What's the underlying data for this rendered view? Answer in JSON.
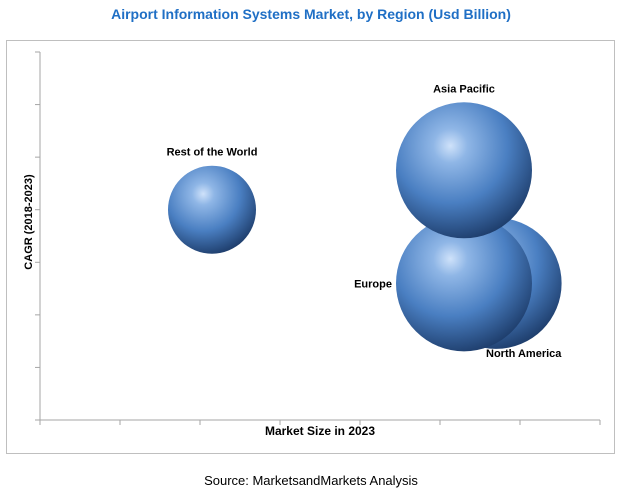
{
  "chart_data": {
    "type": "bubble",
    "title": "Airport Information Systems Market, by Region (Usd Billion)",
    "xlabel": "Market Size in 2023",
    "ylabel": "CAGR (2018-2023)",
    "x_ticks": 7,
    "y_ticks": 7,
    "series": [
      {
        "name": "Rest of the World",
        "x": 2.15,
        "y": 4.0,
        "size": 0.55,
        "label_position": "top"
      },
      {
        "name": "North America",
        "x": 5.7,
        "y": 2.6,
        "size": 0.82,
        "label_position": "bottom-right"
      },
      {
        "name": "Europe",
        "x": 5.3,
        "y": 2.6,
        "size": 0.85,
        "label_position": "left"
      },
      {
        "name": "Asia Pacific",
        "x": 5.3,
        "y": 4.75,
        "size": 0.85,
        "label_position": "top"
      }
    ],
    "xlim": [
      0,
      7
    ],
    "ylim": [
      0,
      7
    ]
  },
  "source": "Source: MarketsandMarkets Analysis",
  "colors": {
    "title": "#1f6fc5",
    "bubble_light": "#8fb6e6",
    "bubble_mid": "#4a7fc2",
    "bubble_dark": "#1f3f6e"
  }
}
